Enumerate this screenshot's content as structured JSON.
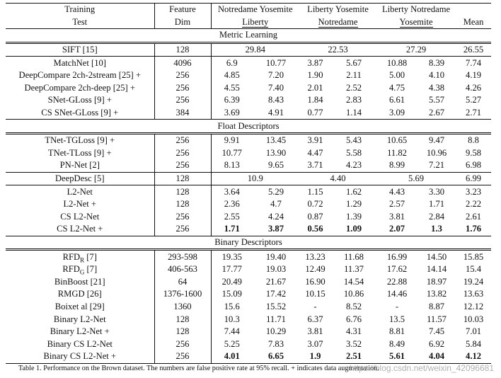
{
  "header": {
    "row1": {
      "col1": "Training",
      "col2": "Feature",
      "col3": "Notredame Yosemite",
      "col4": "Liberty  Yosemite",
      "col5": "Liberty  Notredame"
    },
    "row2": {
      "col1": "Test",
      "col2": "Dim",
      "col3": "Liberty",
      "col4": "Notredame",
      "col5": "Yosemite",
      "col6": "Mean"
    }
  },
  "sections": {
    "metric": "Metric Learning",
    "float": "Float Descriptors",
    "binary": "Binary Descriptors"
  },
  "rows": [
    {
      "name": "SIFT [15]",
      "dim": "128",
      "lib": "29.84",
      "nd": "22.53",
      "yos": "27.29",
      "mean": "26.55"
    },
    {
      "name": "MatchNet [10]",
      "dim": "4096",
      "v1": "6.9",
      "v2": "10.77",
      "v3": "3.87",
      "v4": "5.67",
      "v5": "10.88",
      "v6": "8.39",
      "mean": "7.74"
    },
    {
      "name": "DeepCompare 2ch-2stream [25] +",
      "dim": "256",
      "v1": "4.85",
      "v2": "7.20",
      "v3": "1.90",
      "v4": "2.11",
      "v5": "5.00",
      "v6": "4.10",
      "mean": "4.19"
    },
    {
      "name": "DeepCompare 2ch-deep [25] +",
      "dim": "256",
      "v1": "4.55",
      "v2": "7.40",
      "v3": "2.01",
      "v4": "2.52",
      "v5": "4.75",
      "v6": "4.38",
      "mean": "4.26"
    },
    {
      "name": "SNet-GLoss [9] +",
      "dim": "256",
      "v1": "6.39",
      "v2": "8.43",
      "v3": "1.84",
      "v4": "2.83",
      "v5": "6.61",
      "v6": "5.57",
      "mean": "5.27"
    },
    {
      "name": "CS SNet-GLoss [9] +",
      "dim": "384",
      "v1": "3.69",
      "v2": "4.91",
      "v3": "0.77",
      "v4": "1.14",
      "v5": "3.09",
      "v6": "2.67",
      "mean": "2.71"
    },
    {
      "name": "TNet-TGLoss [9] +",
      "dim": "256",
      "v1": "9.91",
      "v2": "13.45",
      "v3": "3.91",
      "v4": "5.43",
      "v5": "10.65",
      "v6": "9.47",
      "mean": "8.8"
    },
    {
      "name": "TNet-TLoss [9] +",
      "dim": "256",
      "v1": "10.77",
      "v2": "13.90",
      "v3": "4.47",
      "v4": "5.58",
      "v5": "11.82",
      "v6": "10.96",
      "mean": "9.58"
    },
    {
      "name": "PN-Net [2]",
      "dim": "256",
      "v1": "8.13",
      "v2": "9.65",
      "v3": "3.71",
      "v4": "4.23",
      "v5": "8.99",
      "v6": "7.21",
      "mean": "6.98"
    },
    {
      "name": "DeepDesc [5]",
      "dim": "128",
      "lib": "10.9",
      "nd": "4.40",
      "yos": "5.69",
      "mean": "6.99"
    },
    {
      "name": "L2-Net",
      "dim": "128",
      "v1": "3.64",
      "v2": "5.29",
      "v3": "1.15",
      "v4": "1.62",
      "v5": "4.43",
      "v6": "3.30",
      "mean": "3.23"
    },
    {
      "name": "L2-Net +",
      "dim": "128",
      "v1": "2.36",
      "v2": "4.7",
      "v3": "0.72",
      "v4": "1.29",
      "v5": "2.57",
      "v6": "1.71",
      "mean": "2.22"
    },
    {
      "name": "CS L2-Net",
      "dim": "256",
      "v1": "2.55",
      "v2": "4.24",
      "v3": "0.87",
      "v4": "1.39",
      "v5": "3.81",
      "v6": "2.84",
      "mean": "2.61"
    },
    {
      "name": "CS L2-Net +",
      "dim": "256",
      "v1": "1.71",
      "v2": "3.87",
      "v3": "0.56",
      "v4": "1.09",
      "v5": "2.07",
      "v6": "1.3",
      "mean": "1.76"
    },
    {
      "name": "RFD",
      "sub": "R",
      "suffix": " [7]",
      "dim": "293-598",
      "v1": "19.35",
      "v2": "19.40",
      "v3": "13.23",
      "v4": "11.68",
      "v5": "16.99",
      "v6": "14.50",
      "mean": "15.85"
    },
    {
      "name": "RFD",
      "sub": "G",
      "suffix": " [7]",
      "dim": "406-563",
      "v1": "17.77",
      "v2": "19.03",
      "v3": "12.49",
      "v4": "11.37",
      "v5": "17.62",
      "v6": "14.14",
      "mean": "15.4"
    },
    {
      "name": "BinBoost [21]",
      "dim": "64",
      "v1": "20.49",
      "v2": "21.67",
      "v3": "16.90",
      "v4": "14.54",
      "v5": "22.88",
      "v6": "18.97",
      "mean": "19.24"
    },
    {
      "name": "RMGD [26]",
      "dim": "1376-1600",
      "v1": "15.09",
      "v2": "17.42",
      "v3": "10.15",
      "v4": "10.86",
      "v5": "14.46",
      "v6": "13.82",
      "mean": "13.63"
    },
    {
      "name": "Boixet al [29]",
      "dim": "1360",
      "v1": "15.6",
      "v2": "15.52",
      "v3": "-",
      "v4": "8.52",
      "v5": "-",
      "v6": "8.87",
      "mean": "12.12"
    },
    {
      "name": "Binary L2-Net",
      "dim": "128",
      "v1": "10.3",
      "v2": "11.71",
      "v3": "6.37",
      "v4": "6.76",
      "v5": "13.5",
      "v6": "11.57",
      "mean": "10.03"
    },
    {
      "name": "Binary L2-Net +",
      "dim": "128",
      "v1": "7.44",
      "v2": "10.29",
      "v3": "3.81",
      "v4": "4.31",
      "v5": "8.81",
      "v6": "7.45",
      "mean": "7.01"
    },
    {
      "name": "Binary CS L2-Net",
      "dim": "256",
      "v1": "5.25",
      "v2": "7.83",
      "v3": "3.07",
      "v4": "3.52",
      "v5": "8.49",
      "v6": "6.92",
      "mean": "5.84"
    },
    {
      "name": "Binary CS L2-Net +",
      "dim": "256",
      "v1": "4.01",
      "v2": "6.65",
      "v3": "1.9",
      "v4": "2.51",
      "v5": "5.61",
      "v6": "4.04",
      "mean": "4.12"
    }
  ],
  "caption": "Table 1. Performance on the Brown dataset. The numbers are false positive rate at 95% recall. + indicates data augmentation.",
  "watermark": "https://blog.csdn.net/weixin_42096681"
}
